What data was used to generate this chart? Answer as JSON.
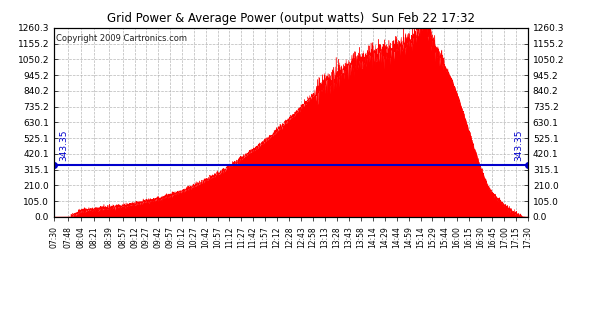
{
  "title": "Grid Power & Average Power (output watts)  Sun Feb 22 17:32",
  "copyright": "Copyright 2009 Cartronics.com",
  "avg_power": 343.35,
  "y_max": 1260.3,
  "y_ticks": [
    0.0,
    105.0,
    210.0,
    315.1,
    420.1,
    525.1,
    630.1,
    735.2,
    840.2,
    945.2,
    1050.2,
    1155.2,
    1260.3
  ],
  "background_color": "#ffffff",
  "fill_color": "#ff0000",
  "avg_line_color": "#0000cc",
  "grid_color": "#b0b0b0",
  "title_color": "#000000",
  "tick_labels": [
    "07:30",
    "07:48",
    "08:04",
    "08:21",
    "08:39",
    "08:57",
    "09:12",
    "09:27",
    "09:42",
    "09:57",
    "10:12",
    "10:27",
    "10:42",
    "10:57",
    "11:12",
    "11:27",
    "11:42",
    "11:57",
    "12:12",
    "12:28",
    "12:43",
    "12:58",
    "13:13",
    "13:28",
    "13:43",
    "13:58",
    "14:14",
    "14:29",
    "14:44",
    "14:59",
    "15:14",
    "15:29",
    "15:44",
    "16:00",
    "16:15",
    "16:30",
    "16:45",
    "17:00",
    "17:15",
    "17:30"
  ],
  "curve_points_minutes": [
    450,
    458,
    464,
    469,
    479,
    497,
    512,
    527,
    542,
    557,
    572,
    587,
    602,
    617,
    632,
    647,
    662,
    677,
    692,
    708,
    723,
    738,
    753,
    768,
    783,
    798,
    814,
    829,
    844,
    859,
    874,
    889,
    904,
    920,
    935,
    950,
    960,
    970,
    975,
    980,
    985,
    990,
    995,
    1000,
    1010,
    1020,
    1030,
    1040,
    1050
  ],
  "curve_points_power": [
    0,
    0,
    0,
    0,
    30,
    50,
    60,
    70,
    80,
    95,
    110,
    130,
    155,
    185,
    220,
    260,
    305,
    355,
    410,
    470,
    535,
    605,
    680,
    760,
    840,
    910,
    970,
    1020,
    1060,
    1090,
    1110,
    1150,
    1200,
    1250,
    1100,
    950,
    820,
    660,
    580,
    490,
    410,
    330,
    260,
    200,
    130,
    80,
    40,
    10,
    0
  ]
}
